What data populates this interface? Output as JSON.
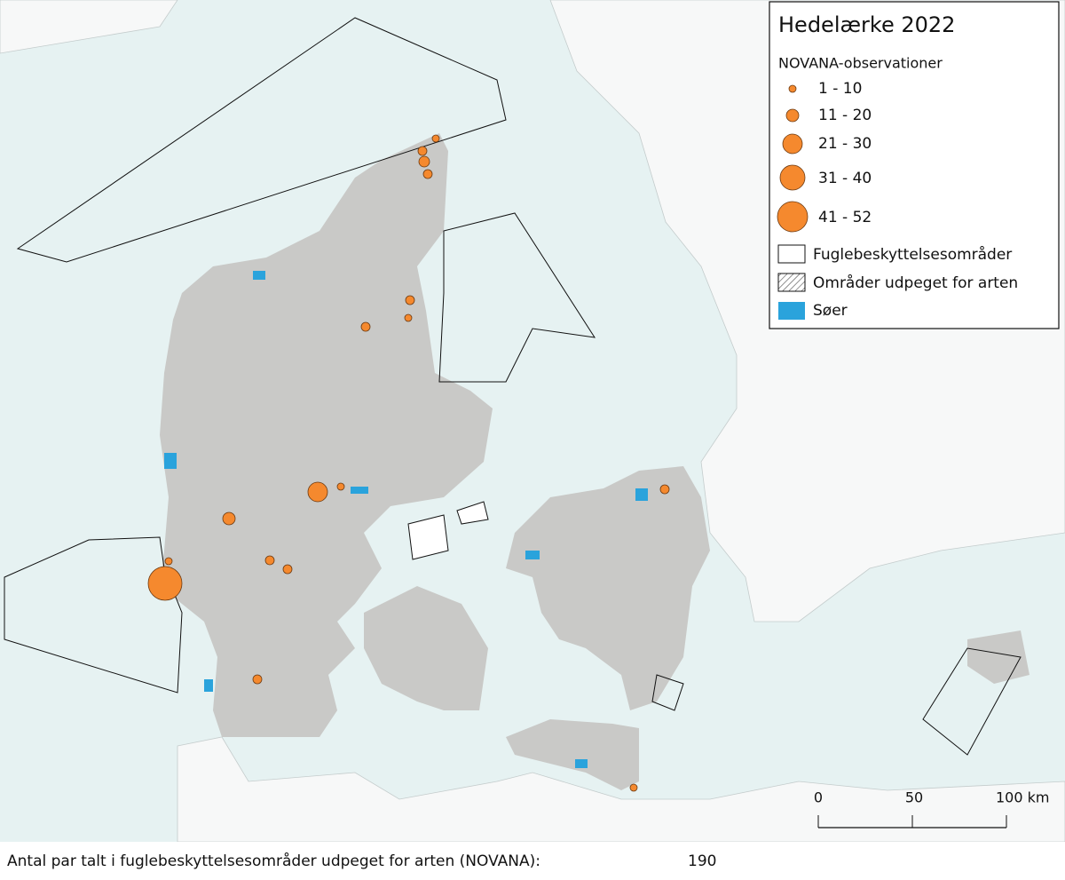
{
  "legend": {
    "title": "Hedelærke 2022",
    "subtitle": "NOVANA-observationer",
    "size_classes": [
      "1 - 10",
      "11 - 20",
      "21 - 30",
      "31 - 40",
      "41 - 52"
    ],
    "areas": [
      "Fuglebeskyttelsesområder",
      "Områder udpeget for arten",
      "Søer"
    ]
  },
  "scale_bar": {
    "labels": [
      "0",
      "50",
      "100 km"
    ]
  },
  "footer": {
    "label": "Antal par talt i fuglebeskyttelsesområder udpeget for arten (NOVANA):",
    "value": 190
  }
}
